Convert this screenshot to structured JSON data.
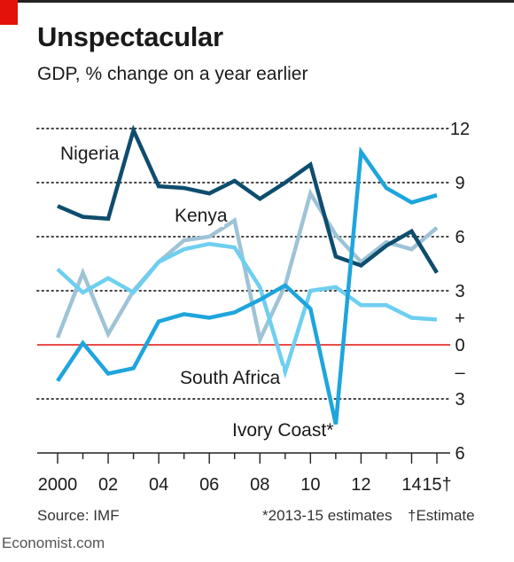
{
  "header": {
    "title": "Unspectacular",
    "subtitle": "GDP, % change on a year earlier"
  },
  "footer": {
    "source": "Source: IMF",
    "note_estimates": "*2013-15 estimates",
    "note_estimate": "†Estimate",
    "watermark": "Economist.com"
  },
  "colors": {
    "nigeria": "#0e4d6e",
    "kenya": "#9fc3d6",
    "south_africa": "#6ecff0",
    "ivory_coast": "#1ea5dd",
    "zero_line": "#e3120b",
    "grid": "#444444",
    "brand_red": "#e3120b"
  },
  "chart_data": {
    "type": "line",
    "title": "Unspectacular",
    "subtitle": "GDP, % change on a year earlier",
    "x": [
      2000,
      2001,
      2002,
      2003,
      2004,
      2005,
      2006,
      2007,
      2008,
      2009,
      2010,
      2011,
      2012,
      2013,
      2014,
      2015
    ],
    "x_tick_labels": [
      {
        "x": 2000,
        "label": "2000"
      },
      {
        "x": 2002,
        "label": "02"
      },
      {
        "x": 2004,
        "label": "04"
      },
      {
        "x": 2006,
        "label": "06"
      },
      {
        "x": 2008,
        "label": "08"
      },
      {
        "x": 2010,
        "label": "10"
      },
      {
        "x": 2012,
        "label": "12"
      },
      {
        "x": 2014,
        "label": "14"
      },
      {
        "x": 2015,
        "label": "15†"
      }
    ],
    "y_ticks": [
      {
        "y": 12,
        "label": "12"
      },
      {
        "y": 9,
        "label": "9"
      },
      {
        "y": 6,
        "label": "6"
      },
      {
        "y": 3,
        "label": "3"
      },
      {
        "y": 1.5,
        "label": "+"
      },
      {
        "y": 0,
        "label": "0"
      },
      {
        "y": -1.5,
        "label": "–"
      },
      {
        "y": -3,
        "label": "3"
      },
      {
        "y": -6,
        "label": "6"
      }
    ],
    "ylim": [
      -6,
      12
    ],
    "y_axis_side": "right",
    "grid": "dotted horizontal",
    "series": [
      {
        "name": "Nigeria",
        "color_key": "nigeria",
        "values": [
          7.7,
          7.1,
          7.0,
          11.9,
          8.8,
          8.7,
          8.4,
          9.1,
          8.1,
          9.0,
          10.0,
          4.9,
          4.4,
          5.5,
          6.3,
          4.0
        ]
      },
      {
        "name": "Kenya",
        "color_key": "kenya",
        "values": [
          0.4,
          4.0,
          0.6,
          3.0,
          4.6,
          5.8,
          6.0,
          6.9,
          0.3,
          3.3,
          8.4,
          6.1,
          4.6,
          5.7,
          5.3,
          6.5
        ]
      },
      {
        "name": "South Africa",
        "color_key": "south_africa",
        "values": [
          4.2,
          2.9,
          3.7,
          2.9,
          4.6,
          5.3,
          5.6,
          5.4,
          3.2,
          -1.5,
          3.0,
          3.2,
          2.2,
          2.2,
          1.5,
          1.4
        ]
      },
      {
        "name": "Ivory Coast*",
        "color_key": "ivory_coast",
        "values": [
          -2.0,
          0.1,
          -1.6,
          -1.3,
          1.3,
          1.7,
          1.5,
          1.8,
          2.5,
          3.3,
          2.0,
          -4.4,
          10.7,
          8.7,
          7.9,
          8.3
        ]
      }
    ],
    "labels": {
      "nigeria": "Nigeria",
      "kenya": "Kenya",
      "south_africa": "South Africa",
      "ivory_coast": "Ivory Coast*"
    }
  }
}
